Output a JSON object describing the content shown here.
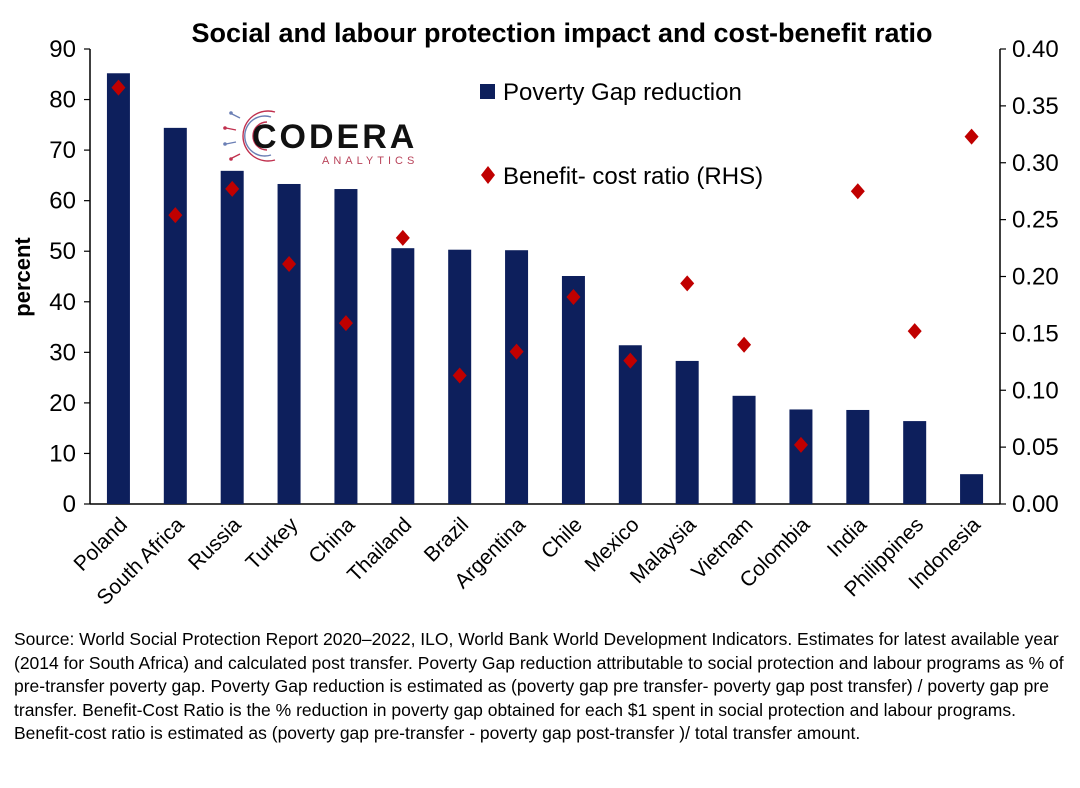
{
  "chart_data": {
    "type": "bar",
    "title": "Social and labour protection impact and cost-benefit ratio",
    "ylabel": "percent",
    "ylim": [
      0,
      90
    ],
    "yticks": [
      0,
      10,
      20,
      30,
      40,
      50,
      60,
      70,
      80,
      90
    ],
    "y2lim": [
      0,
      0.4
    ],
    "y2ticks": [
      "0.00",
      "0.05",
      "0.10",
      "0.15",
      "0.20",
      "0.25",
      "0.30",
      "0.35",
      "0.40"
    ],
    "categories": [
      "Poland",
      "South Africa",
      "Russia",
      "Turkey",
      "China",
      "Thailand",
      "Brazil",
      "Argentina",
      "Chile",
      "Mexico",
      "Malaysia",
      "Vietnam",
      "Colombia",
      "India",
      "Philippines",
      "Indonesia"
    ],
    "series": [
      {
        "name": "Poverty Gap reduction",
        "type": "bar",
        "axis": "left",
        "color": "#0d1f5c",
        "values": [
          85.2,
          74.4,
          65.9,
          63.3,
          62.3,
          50.6,
          50.3,
          50.2,
          45.1,
          31.4,
          28.3,
          21.4,
          18.7,
          18.6,
          16.4,
          5.9
        ]
      },
      {
        "name": "Benefit- cost ratio (RHS)",
        "type": "scatter",
        "axis": "right",
        "marker": "diamond",
        "color": "#c00000",
        "values": [
          0.366,
          0.254,
          0.277,
          0.211,
          0.159,
          0.234,
          0.113,
          0.134,
          0.182,
          0.126,
          0.194,
          0.14,
          0.052,
          0.275,
          0.152,
          0.323
        ]
      }
    ],
    "legend": "top-center",
    "grid": false
  },
  "logo": {
    "name": "CODERA",
    "tagline": "ANALYTICS"
  },
  "source_note": "Source: World Social Protection Report 2020–2022, ILO, World Bank World Development Indicators. Estimates for latest available year (2014 for South Africa) and calculated post transfer. Poverty Gap reduction attributable to social protection and labour programs as % of pre-transfer poverty gap. Poverty Gap reduction is estimated as (poverty gap pre  transfer- poverty gap post transfer) / poverty gap pre transfer. Benefit-Cost Ratio is the % reduction in poverty gap obtained for each $1 spent in social protection and labour programs. Benefit-cost ratio is estimated as (poverty gap pre-transfer - poverty gap post-transfer )/ total transfer amount."
}
